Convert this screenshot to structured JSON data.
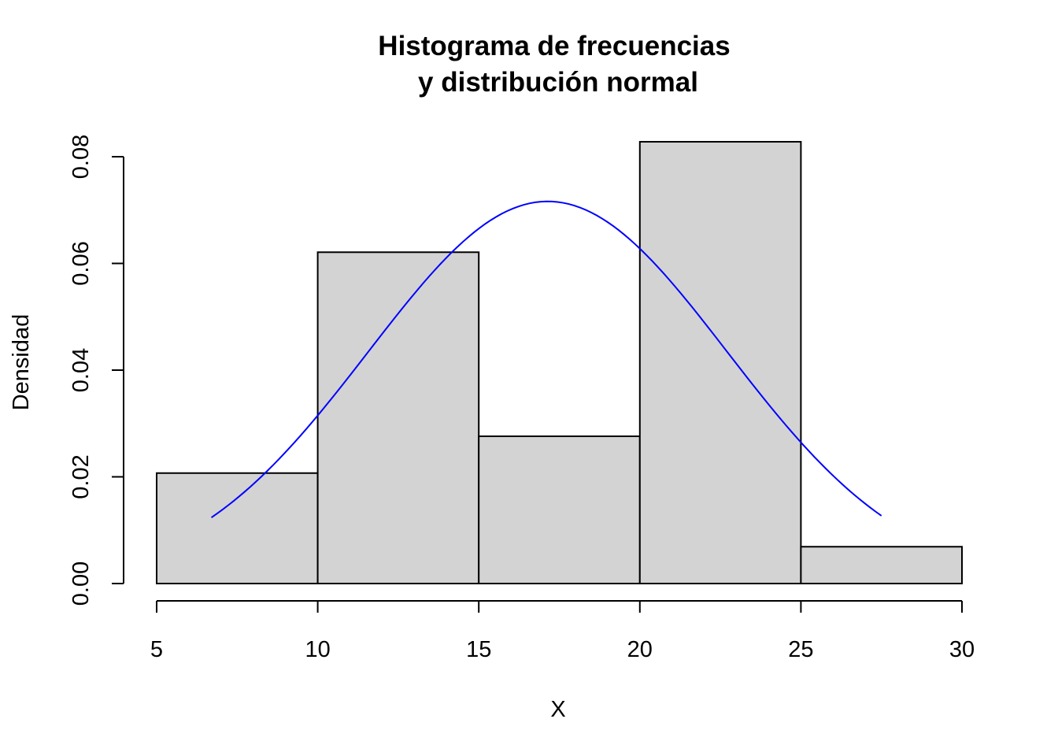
{
  "chart_data": {
    "type": "bar",
    "title_lines": [
      "Histograma de frecuencias",
      "y distribución normal"
    ],
    "xlabel": "X",
    "ylabel": "Densidad",
    "bins": [
      {
        "start": 5,
        "end": 10,
        "density": 0.0207
      },
      {
        "start": 10,
        "end": 15,
        "density": 0.0621
      },
      {
        "start": 15,
        "end": 20,
        "density": 0.0276
      },
      {
        "start": 20,
        "end": 25,
        "density": 0.0828
      },
      {
        "start": 25,
        "end": 30,
        "density": 0.0069
      }
    ],
    "xlim": [
      5,
      30
    ],
    "ylim": [
      0,
      0.08
    ],
    "x_ticks": [
      "5",
      "10",
      "15",
      "20",
      "25",
      "30"
    ],
    "y_ticks": [
      "0.00",
      "0.02",
      "0.04",
      "0.06",
      "0.08"
    ],
    "bar_color": "#d3d3d3",
    "normal_curve": {
      "mean": 17.14,
      "sd": 5.57,
      "x_range": [
        6.7,
        27.5
      ],
      "color": "#0000ff"
    },
    "grid": false,
    "legend": "none"
  }
}
